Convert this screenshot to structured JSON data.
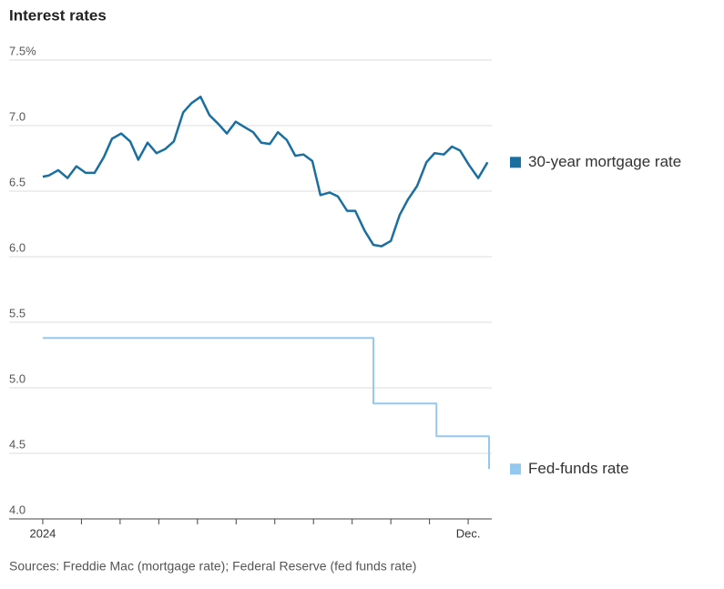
{
  "chart_data": {
    "type": "line",
    "title": "Interest rates",
    "source": "Sources: Freddie Mac (mortgage rate); Federal Reserve (fed funds rate)",
    "ylim": [
      4.0,
      7.5
    ],
    "yticks": [
      {
        "value": 7.5,
        "label": "7.5%"
      },
      {
        "value": 7.0,
        "label": "7.0"
      },
      6.5,
      {
        "value": 6.0,
        "label": "6.0"
      },
      5.5,
      {
        "value": 5.0,
        "label": "5.0"
      },
      4.5,
      {
        "value": 4.0,
        "label": "4.0"
      }
    ],
    "xlim": [
      -0.87,
      11.61
    ],
    "xticks": [
      {
        "value": 0,
        "label": "2024"
      },
      {
        "value": 11,
        "label": "Dec."
      }
    ],
    "minor_xticks": [
      1,
      2,
      3,
      4,
      5,
      6,
      7,
      8,
      9,
      10
    ],
    "grid": true,
    "legend": "right",
    "series": [
      {
        "name": "30-year mortgage rate",
        "color": "#1a6fa0",
        "step": false,
        "x": [
          0,
          0.16,
          0.4,
          0.64,
          0.87,
          1.11,
          1.34,
          1.58,
          1.79,
          2.03,
          2.26,
          2.47,
          2.71,
          2.94,
          3.16,
          3.39,
          3.63,
          3.84,
          4.08,
          4.31,
          4.55,
          4.76,
          4.99,
          5.21,
          5.44,
          5.65,
          5.87,
          6.08,
          6.31,
          6.53,
          6.74,
          6.97,
          7.18,
          7.42,
          7.63,
          7.87,
          8.08,
          8.32,
          8.55,
          8.76,
          9.0,
          9.23,
          9.45,
          9.68,
          9.92,
          10.13,
          10.37,
          10.58,
          10.79,
          11.02,
          11.26,
          11.5
        ],
        "values": [
          6.61,
          6.62,
          6.66,
          6.6,
          6.69,
          6.64,
          6.64,
          6.76,
          6.9,
          6.94,
          6.88,
          6.74,
          6.87,
          6.79,
          6.82,
          6.88,
          7.1,
          7.17,
          7.22,
          7.08,
          7.01,
          6.94,
          7.03,
          6.99,
          6.95,
          6.87,
          6.86,
          6.95,
          6.89,
          6.77,
          6.78,
          6.73,
          6.47,
          6.49,
          6.46,
          6.35,
          6.35,
          6.2,
          6.09,
          6.08,
          6.12,
          6.32,
          6.44,
          6.54,
          6.72,
          6.79,
          6.78,
          6.84,
          6.81,
          6.7,
          6.6,
          6.72
        ]
      },
      {
        "name": "Fed-funds rate",
        "color": "#93c8f0",
        "step": true,
        "x": [
          0,
          8.55,
          10.18,
          11.54
        ],
        "values": [
          5.38,
          4.88,
          4.63,
          4.38
        ]
      }
    ]
  }
}
